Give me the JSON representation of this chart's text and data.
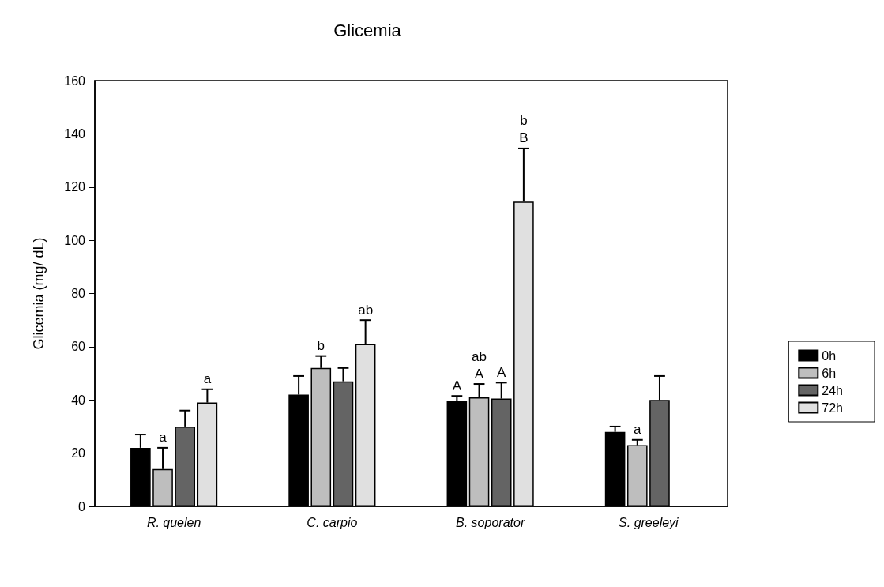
{
  "chart_data": {
    "type": "bar",
    "title": "Glicemia",
    "ylabel": "Glicemia (mg/ dL)",
    "categories": [
      "R. quelen",
      "C. carpio",
      "B. soporator",
      "S. greeleyi"
    ],
    "series": [
      {
        "name": "0h",
        "color": "#000000",
        "values": [
          22,
          42,
          39.5,
          28
        ],
        "errors": [
          [
            22,
            27
          ],
          [
            42,
            49
          ],
          [
            39.5,
            41.5
          ],
          [
            28,
            30
          ]
        ],
        "value_labels": [
          null,
          null,
          "A",
          null
        ]
      },
      {
        "name": "6h",
        "color": "#bebebe",
        "values": [
          14,
          52,
          41,
          23
        ],
        "errors": [
          [
            14,
            22
          ],
          [
            52,
            56.5
          ],
          [
            41,
            46
          ],
          [
            23,
            25
          ]
        ],
        "value_labels": [
          "a",
          "b",
          "ab\nA",
          "a"
        ]
      },
      {
        "name": "24h",
        "color": "#646464",
        "values": [
          30,
          47,
          40.5,
          40
        ],
        "errors": [
          [
            30,
            36
          ],
          [
            47,
            52
          ],
          [
            40.5,
            46.5
          ],
          [
            40,
            49
          ]
        ],
        "value_labels": [
          null,
          null,
          "A",
          null
        ]
      },
      {
        "name": "72h",
        "color": "#e0e0e0",
        "values": [
          39,
          61,
          114.5,
          null
        ],
        "errors": [
          [
            39,
            44
          ],
          [
            61,
            70
          ],
          [
            114.5,
            134.5
          ],
          null
        ],
        "value_labels": [
          "a",
          "ab",
          null,
          null
        ]
      }
    ],
    "annotations": [
      "b\nB"
    ],
    "ylim": [
      0,
      160
    ],
    "yticks": [
      0,
      20,
      40,
      60,
      80,
      100,
      120,
      140,
      160
    ],
    "grid": false,
    "legend": "right"
  }
}
